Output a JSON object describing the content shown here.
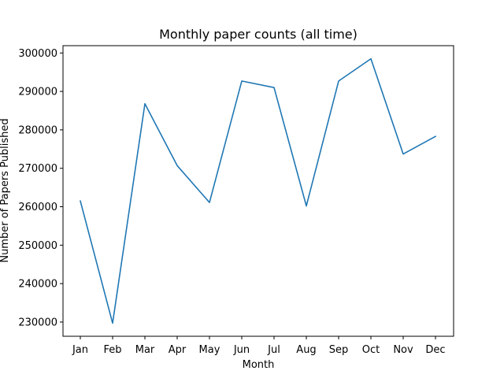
{
  "chart_data": {
    "type": "line",
    "title": "Monthly paper counts (all time)",
    "xlabel": "Month",
    "ylabel": "Number of Papers Published",
    "categories": [
      "Jan",
      "Feb",
      "Mar",
      "Apr",
      "May",
      "Jun",
      "Jul",
      "Aug",
      "Sep",
      "Oct",
      "Nov",
      "Dec"
    ],
    "series": [
      {
        "values": [
          261500,
          229700,
          286800,
          270700,
          261100,
          292700,
          291000,
          260200,
          292700,
          298500,
          273700,
          278300
        ],
        "color": "#1f77b4"
      }
    ],
    "ylim": [
      226300,
      301900
    ],
    "yticks": [
      230000,
      240000,
      250000,
      260000,
      270000,
      280000,
      290000,
      300000
    ],
    "ytick_labels": [
      "230000",
      "240000",
      "250000",
      "260000",
      "270000",
      "280000",
      "290000",
      "300000"
    ],
    "grid": false,
    "legend": "none"
  }
}
